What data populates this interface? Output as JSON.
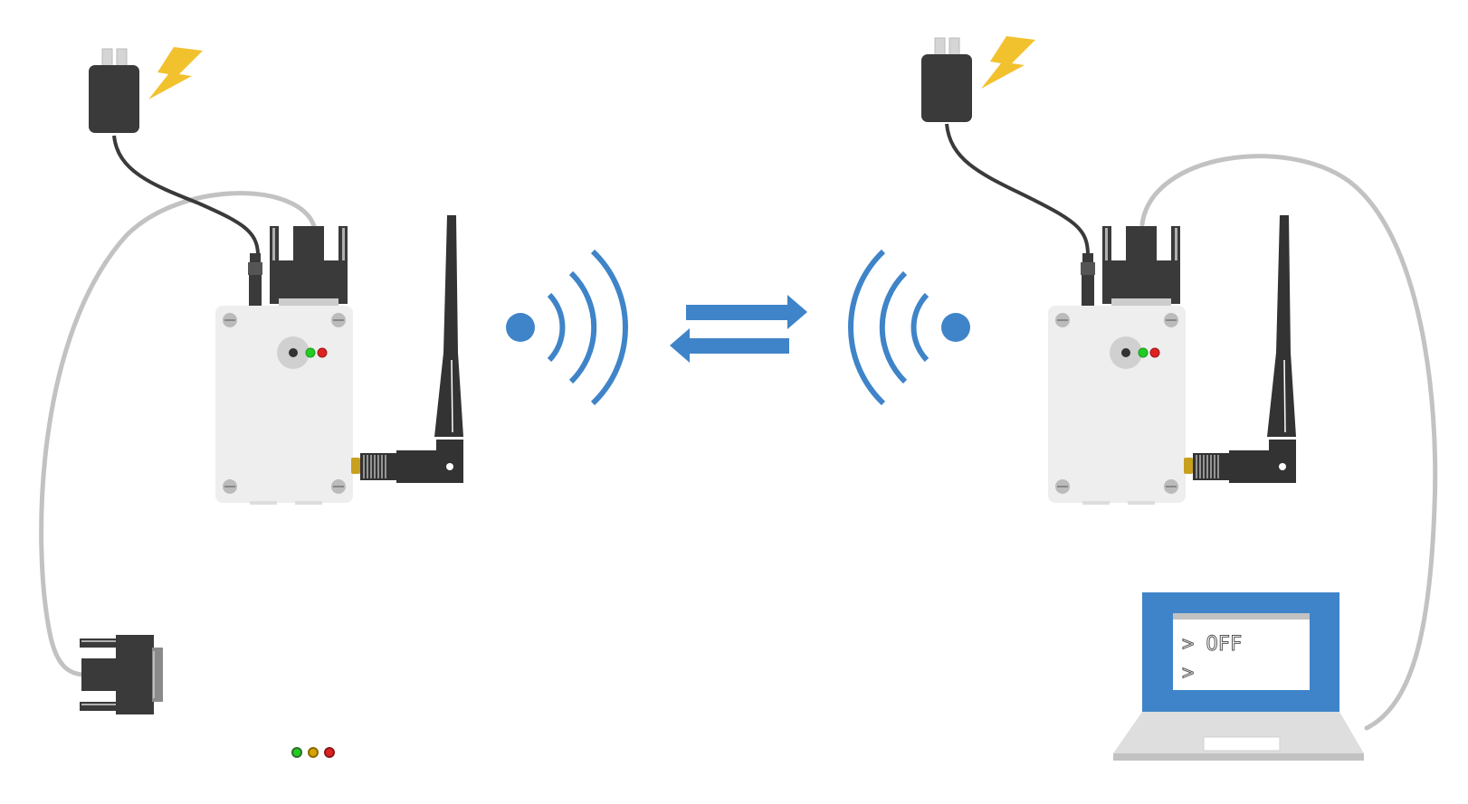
{
  "colors": {
    "accent_blue": "#3f84c8",
    "device_body": "#eeeeee",
    "connector_dark": "#3a3a3a",
    "cable_gray": "#c2c2c2",
    "bolt_yellow": "#f2c12e",
    "led_green": "#22cc22",
    "led_red": "#dd2222",
    "led_amber": "#d9a400"
  },
  "icons": [
    "power-adapter-icon",
    "lightning-bolt-icon",
    "radio-modem-icon",
    "antenna-icon",
    "wireless-signal-icon",
    "bidirectional-arrows-icon",
    "serial-connector-icon",
    "laptop-icon",
    "status-led-icon"
  ],
  "terminal": {
    "line1": "> OFF",
    "line2": ">"
  }
}
